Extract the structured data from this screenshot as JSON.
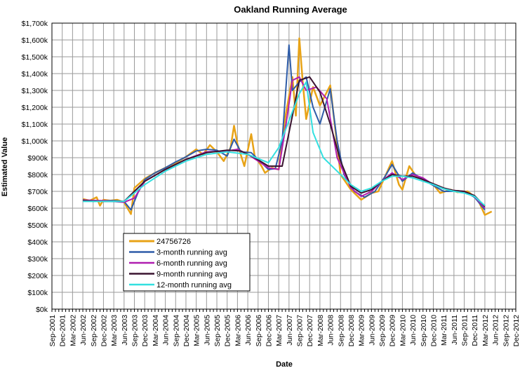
{
  "chart_data": {
    "type": "line",
    "title": "Oakland Running Average",
    "xlabel": "Date",
    "ylabel": "Estimated Value",
    "ylim": [
      0,
      1700000
    ],
    "y_ticks": [
      0,
      100000,
      200000,
      300000,
      400000,
      500000,
      600000,
      700000,
      800000,
      900000,
      1000000,
      1100000,
      1200000,
      1300000,
      1400000,
      1500000,
      1600000,
      1700000
    ],
    "y_tick_labels": [
      "$0k",
      "$100k",
      "$200k",
      "$300k",
      "$400k",
      "$500k",
      "$600k",
      "$700k",
      "$800k",
      "$900k",
      "$1,000k",
      "$1,100k",
      "$1,200k",
      "$1,300k",
      "$1,400k",
      "$1,500k",
      "$1,600k",
      "$1,700k"
    ],
    "xlim": [
      "2001-09",
      "2012-12"
    ],
    "x_tick_labels": [
      "Sep-2001",
      "Dec-2001",
      "Mar-2002",
      "Jun-2002",
      "Sep-2002",
      "Dec-2002",
      "Mar-2003",
      "Jun-2003",
      "Sep-2003",
      "Dec-2003",
      "Mar-2004",
      "Jun-2004",
      "Sep-2004",
      "Dec-2004",
      "Mar-2005",
      "Jun-2005",
      "Sep-2005",
      "Dec-2005",
      "Mar-2006",
      "Jun-2006",
      "Sep-2006",
      "Dec-2006",
      "Mar-2007",
      "Jun-2007",
      "Sep-2007",
      "Dec-2007",
      "Mar-2008",
      "Jun-2008",
      "Sep-2008",
      "Dec-2008",
      "Mar-2009",
      "Jun-2009",
      "Sep-2009",
      "Dec-2009",
      "Mar-2010",
      "Jun-2010",
      "Sep-2010",
      "Dec-2010",
      "Mar-2011",
      "Jun-2011",
      "Sep-2011",
      "Dec-2011",
      "Mar-2012",
      "Jun-2012",
      "Sep-2012",
      "Dec-2012"
    ],
    "grid": true,
    "legend_placement": "lower-left",
    "series": [
      {
        "name": "24756726",
        "color": "#E8A317",
        "points": [
          [
            "2002-06",
            655000
          ],
          [
            "2002-08",
            645000
          ],
          [
            "2002-10",
            665000
          ],
          [
            "2002-11",
            615000
          ],
          [
            "2002-12",
            650000
          ],
          [
            "2003-02",
            645000
          ],
          [
            "2003-04",
            650000
          ],
          [
            "2003-06",
            635000
          ],
          [
            "2003-07",
            600000
          ],
          [
            "2003-08",
            565000
          ],
          [
            "2003-09",
            720000
          ],
          [
            "2003-12",
            775000
          ],
          [
            "2004-03",
            810000
          ],
          [
            "2004-06",
            840000
          ],
          [
            "2004-09",
            870000
          ],
          [
            "2004-12",
            905000
          ],
          [
            "2005-03",
            950000
          ],
          [
            "2005-05",
            920000
          ],
          [
            "2005-07",
            975000
          ],
          [
            "2005-09",
            935000
          ],
          [
            "2005-11",
            880000
          ],
          [
            "2006-01",
            960000
          ],
          [
            "2006-02",
            1090000
          ],
          [
            "2006-03",
            980000
          ],
          [
            "2006-05",
            850000
          ],
          [
            "2006-07",
            1040000
          ],
          [
            "2006-08",
            910000
          ],
          [
            "2006-10",
            850000
          ],
          [
            "2006-11",
            810000
          ],
          [
            "2007-01",
            840000
          ],
          [
            "2007-03",
            830000
          ],
          [
            "2007-05",
            1150000
          ],
          [
            "2007-07",
            1380000
          ],
          [
            "2007-08",
            1150000
          ],
          [
            "2007-09",
            1610000
          ],
          [
            "2007-10",
            1350000
          ],
          [
            "2007-11",
            1130000
          ],
          [
            "2008-01",
            1320000
          ],
          [
            "2008-03",
            1210000
          ],
          [
            "2008-06",
            1330000
          ],
          [
            "2008-07",
            1150000
          ],
          [
            "2008-09",
            800000
          ],
          [
            "2008-12",
            710000
          ],
          [
            "2009-03",
            650000
          ],
          [
            "2009-06",
            690000
          ],
          [
            "2009-08",
            700000
          ],
          [
            "2009-10",
            790000
          ],
          [
            "2009-12",
            880000
          ],
          [
            "2010-02",
            740000
          ],
          [
            "2010-03",
            710000
          ],
          [
            "2010-05",
            850000
          ],
          [
            "2010-07",
            790000
          ],
          [
            "2010-09",
            770000
          ],
          [
            "2010-12",
            740000
          ],
          [
            "2011-02",
            690000
          ],
          [
            "2011-05",
            710000
          ],
          [
            "2011-07",
            695000
          ],
          [
            "2011-10",
            700000
          ],
          [
            "2012-01",
            650000
          ],
          [
            "2012-03",
            560000
          ],
          [
            "2012-05",
            580000
          ]
        ]
      },
      {
        "name": "3-month running avg",
        "color": "#2E5CA8",
        "points": [
          [
            "2002-06",
            650000
          ],
          [
            "2002-09",
            640000
          ],
          [
            "2002-12",
            645000
          ],
          [
            "2003-03",
            645000
          ],
          [
            "2003-06",
            640000
          ],
          [
            "2003-08",
            590000
          ],
          [
            "2003-10",
            690000
          ],
          [
            "2003-12",
            770000
          ],
          [
            "2004-03",
            810000
          ],
          [
            "2004-06",
            840000
          ],
          [
            "2004-09",
            875000
          ],
          [
            "2004-12",
            905000
          ],
          [
            "2005-03",
            940000
          ],
          [
            "2005-06",
            950000
          ],
          [
            "2005-09",
            945000
          ],
          [
            "2005-12",
            910000
          ],
          [
            "2006-02",
            1010000
          ],
          [
            "2006-04",
            935000
          ],
          [
            "2006-07",
            930000
          ],
          [
            "2006-09",
            890000
          ],
          [
            "2006-12",
            830000
          ],
          [
            "2007-02",
            835000
          ],
          [
            "2007-04",
            1000000
          ],
          [
            "2007-06",
            1570000
          ],
          [
            "2007-07",
            1300000
          ],
          [
            "2007-09",
            1350000
          ],
          [
            "2007-11",
            1380000
          ],
          [
            "2008-01",
            1200000
          ],
          [
            "2008-03",
            1100000
          ],
          [
            "2008-06",
            1310000
          ],
          [
            "2008-08",
            1000000
          ],
          [
            "2008-10",
            800000
          ],
          [
            "2009-01",
            700000
          ],
          [
            "2009-04",
            665000
          ],
          [
            "2009-07",
            700000
          ],
          [
            "2009-10",
            790000
          ],
          [
            "2009-12",
            860000
          ],
          [
            "2010-03",
            760000
          ],
          [
            "2010-06",
            810000
          ],
          [
            "2010-09",
            770000
          ],
          [
            "2010-12",
            735000
          ],
          [
            "2011-03",
            700000
          ],
          [
            "2011-06",
            700000
          ],
          [
            "2011-09",
            700000
          ],
          [
            "2011-12",
            665000
          ],
          [
            "2012-03",
            590000
          ]
        ]
      },
      {
        "name": "6-month running avg",
        "color": "#B01EB0",
        "points": [
          [
            "2002-06",
            648000
          ],
          [
            "2002-12",
            645000
          ],
          [
            "2003-06",
            635000
          ],
          [
            "2003-09",
            660000
          ],
          [
            "2003-12",
            760000
          ],
          [
            "2004-06",
            830000
          ],
          [
            "2004-12",
            890000
          ],
          [
            "2005-06",
            935000
          ],
          [
            "2005-12",
            940000
          ],
          [
            "2006-03",
            950000
          ],
          [
            "2006-06",
            920000
          ],
          [
            "2006-09",
            880000
          ],
          [
            "2006-12",
            840000
          ],
          [
            "2007-03",
            830000
          ],
          [
            "2007-05",
            1080000
          ],
          [
            "2007-07",
            1360000
          ],
          [
            "2007-09",
            1380000
          ],
          [
            "2007-11",
            1300000
          ],
          [
            "2008-02",
            1320000
          ],
          [
            "2008-05",
            1250000
          ],
          [
            "2008-08",
            900000
          ],
          [
            "2008-12",
            720000
          ],
          [
            "2009-03",
            670000
          ],
          [
            "2009-06",
            700000
          ],
          [
            "2009-09",
            760000
          ],
          [
            "2009-12",
            810000
          ],
          [
            "2010-03",
            770000
          ],
          [
            "2010-06",
            800000
          ],
          [
            "2010-09",
            780000
          ],
          [
            "2010-12",
            740000
          ],
          [
            "2011-03",
            715000
          ],
          [
            "2011-06",
            705000
          ],
          [
            "2011-09",
            700000
          ],
          [
            "2011-12",
            670000
          ],
          [
            "2012-03",
            600000
          ]
        ]
      },
      {
        "name": "9-month running avg",
        "color": "#3A1430",
        "points": [
          [
            "2002-06",
            645000
          ],
          [
            "2002-12",
            640000
          ],
          [
            "2003-06",
            640000
          ],
          [
            "2003-12",
            760000
          ],
          [
            "2004-06",
            830000
          ],
          [
            "2004-12",
            890000
          ],
          [
            "2005-06",
            930000
          ],
          [
            "2005-12",
            945000
          ],
          [
            "2006-04",
            940000
          ],
          [
            "2006-08",
            900000
          ],
          [
            "2006-12",
            850000
          ],
          [
            "2007-04",
            850000
          ],
          [
            "2007-07",
            1150000
          ],
          [
            "2007-09",
            1360000
          ],
          [
            "2007-12",
            1380000
          ],
          [
            "2008-03",
            1290000
          ],
          [
            "2008-06",
            1100000
          ],
          [
            "2008-09",
            880000
          ],
          [
            "2008-12",
            730000
          ],
          [
            "2009-03",
            690000
          ],
          [
            "2009-06",
            710000
          ],
          [
            "2009-09",
            760000
          ],
          [
            "2009-12",
            800000
          ],
          [
            "2010-03",
            790000
          ],
          [
            "2010-06",
            790000
          ],
          [
            "2010-09",
            770000
          ],
          [
            "2010-12",
            745000
          ],
          [
            "2011-03",
            720000
          ],
          [
            "2011-06",
            705000
          ],
          [
            "2011-09",
            700000
          ],
          [
            "2011-12",
            675000
          ],
          [
            "2012-03",
            610000
          ]
        ]
      },
      {
        "name": "12-month running avg",
        "color": "#33E0E0",
        "points": [
          [
            "2002-06",
            640000
          ],
          [
            "2002-12",
            640000
          ],
          [
            "2003-06",
            640000
          ],
          [
            "2003-12",
            740000
          ],
          [
            "2004-06",
            820000
          ],
          [
            "2004-12",
            880000
          ],
          [
            "2005-06",
            920000
          ],
          [
            "2005-12",
            935000
          ],
          [
            "2006-06",
            920000
          ],
          [
            "2006-12",
            870000
          ],
          [
            "2007-03",
            960000
          ],
          [
            "2007-06",
            1120000
          ],
          [
            "2007-09",
            1280000
          ],
          [
            "2007-11",
            1350000
          ],
          [
            "2008-01",
            1050000
          ],
          [
            "2008-04",
            900000
          ],
          [
            "2008-08",
            820000
          ],
          [
            "2008-12",
            740000
          ],
          [
            "2009-03",
            700000
          ],
          [
            "2009-06",
            720000
          ],
          [
            "2009-09",
            760000
          ],
          [
            "2009-12",
            790000
          ],
          [
            "2010-03",
            790000
          ],
          [
            "2010-06",
            780000
          ],
          [
            "2010-09",
            760000
          ],
          [
            "2010-12",
            740000
          ],
          [
            "2011-03",
            715000
          ],
          [
            "2011-06",
            700000
          ],
          [
            "2011-09",
            690000
          ],
          [
            "2011-12",
            670000
          ],
          [
            "2012-03",
            615000
          ]
        ]
      }
    ]
  }
}
